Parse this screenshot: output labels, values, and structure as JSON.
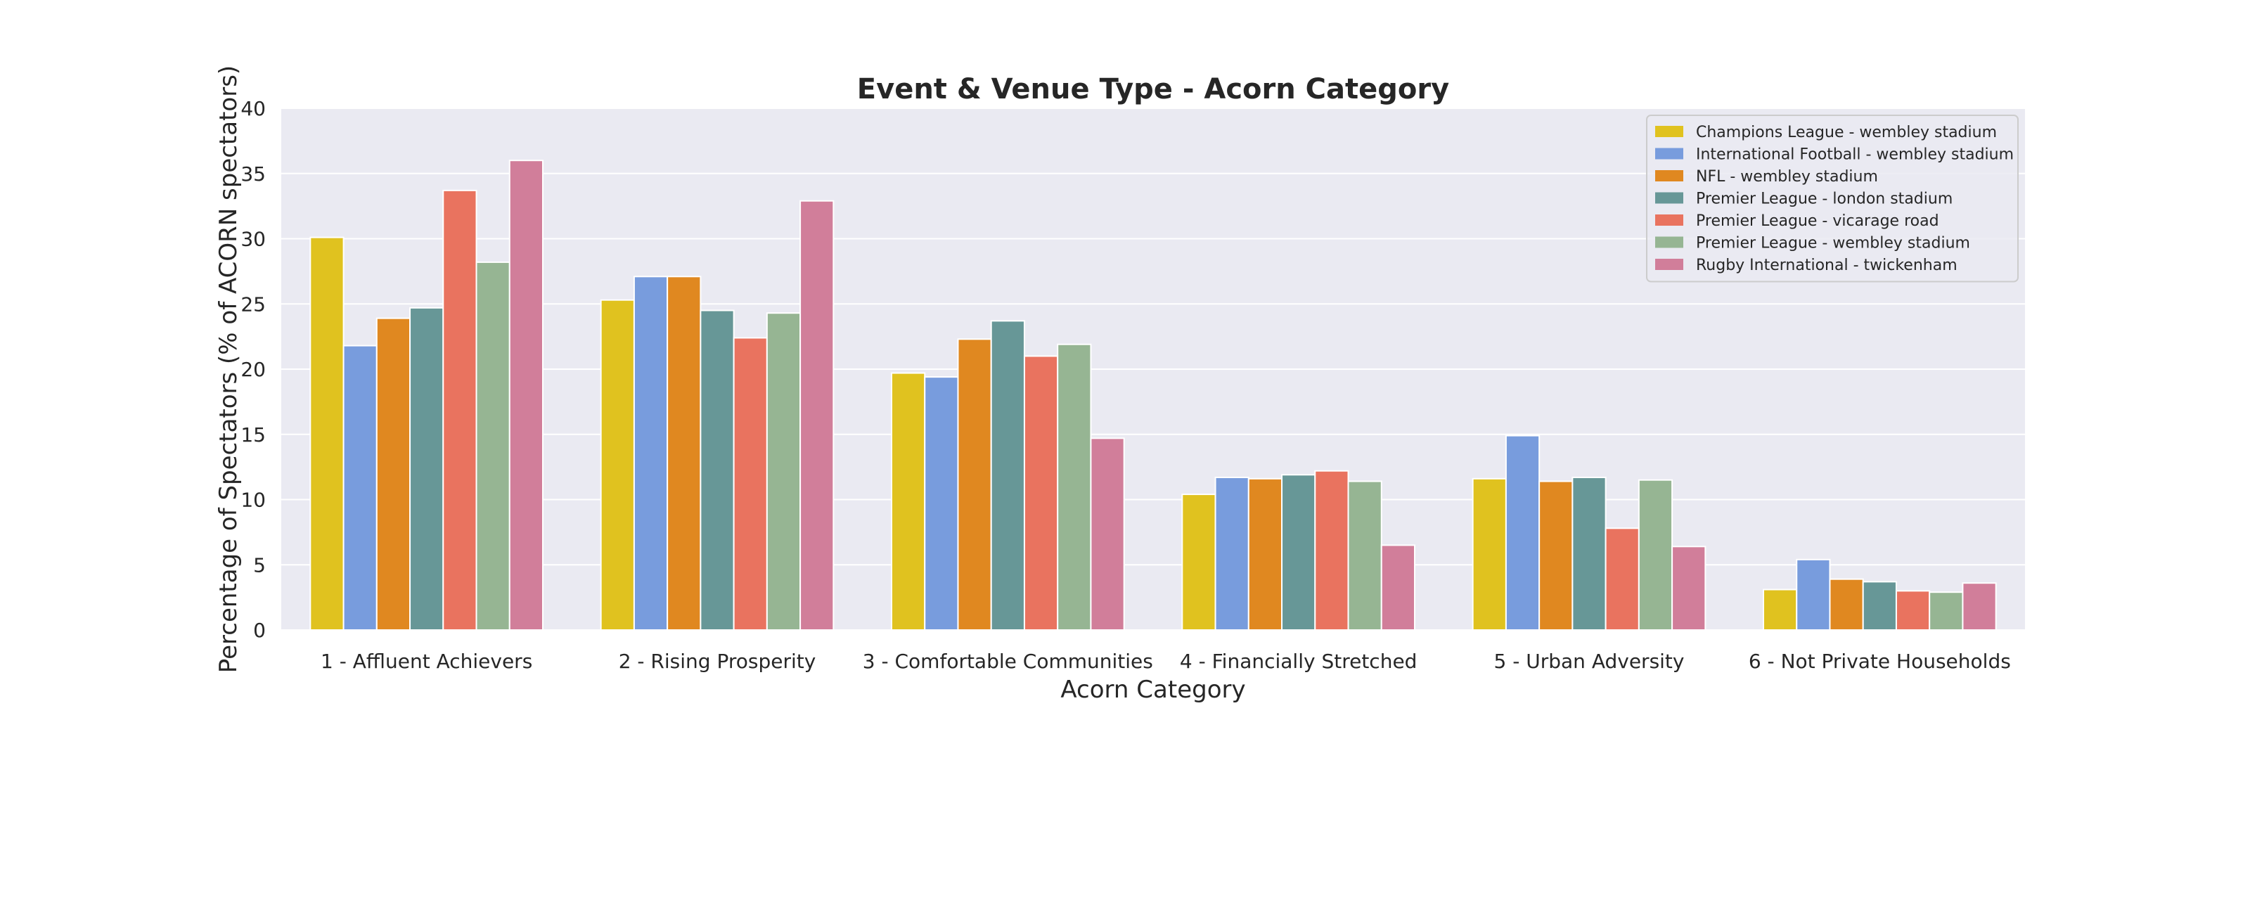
{
  "chart_data": {
    "type": "bar",
    "title": "Event & Venue Type - Acorn Category",
    "xlabel": "Acorn Category",
    "ylabel": "Percentage of Spectators (% of ACORN spectators)",
    "ylim": [
      0,
      40
    ],
    "yticks": [
      0,
      5,
      10,
      15,
      20,
      25,
      30,
      35,
      40
    ],
    "grid": true,
    "legend_position": "top-right",
    "background_color": "#eaeaf2",
    "grid_color": "#ffffff",
    "categories": [
      "1 - Affluent Achievers",
      "2 - Rising Prosperity",
      "3 - Comfortable Communities",
      "4 - Financially Stretched",
      "5 - Urban Adversity",
      "6 - Not Private Households"
    ],
    "series": [
      {
        "name": "Champions League - wembley stadium",
        "color": "#e0c21f",
        "values": [
          30.1,
          25.3,
          19.7,
          10.4,
          11.6,
          3.1
        ]
      },
      {
        "name": "International Football - wembley stadium",
        "color": "#789cdd",
        "values": [
          21.8,
          27.1,
          19.4,
          11.7,
          14.9,
          5.4
        ]
      },
      {
        "name": "NFL - wembley stadium",
        "color": "#e08820",
        "values": [
          23.9,
          27.1,
          22.3,
          11.6,
          11.4,
          3.9
        ]
      },
      {
        "name": "Premier League - london stadium",
        "color": "#679797",
        "values": [
          24.7,
          24.5,
          23.7,
          11.9,
          11.7,
          3.7
        ]
      },
      {
        "name": "Premier League - vicarage road",
        "color": "#e9735f",
        "values": [
          33.7,
          22.4,
          21.0,
          12.2,
          7.8,
          3.0
        ]
      },
      {
        "name": "Premier League - wembley stadium",
        "color": "#96b593",
        "values": [
          28.2,
          24.3,
          21.9,
          11.4,
          11.5,
          2.9
        ]
      },
      {
        "name": "Rugby International - twickenham",
        "color": "#d17e9a",
        "values": [
          36.0,
          32.9,
          14.7,
          6.5,
          6.4,
          3.6
        ]
      }
    ]
  }
}
